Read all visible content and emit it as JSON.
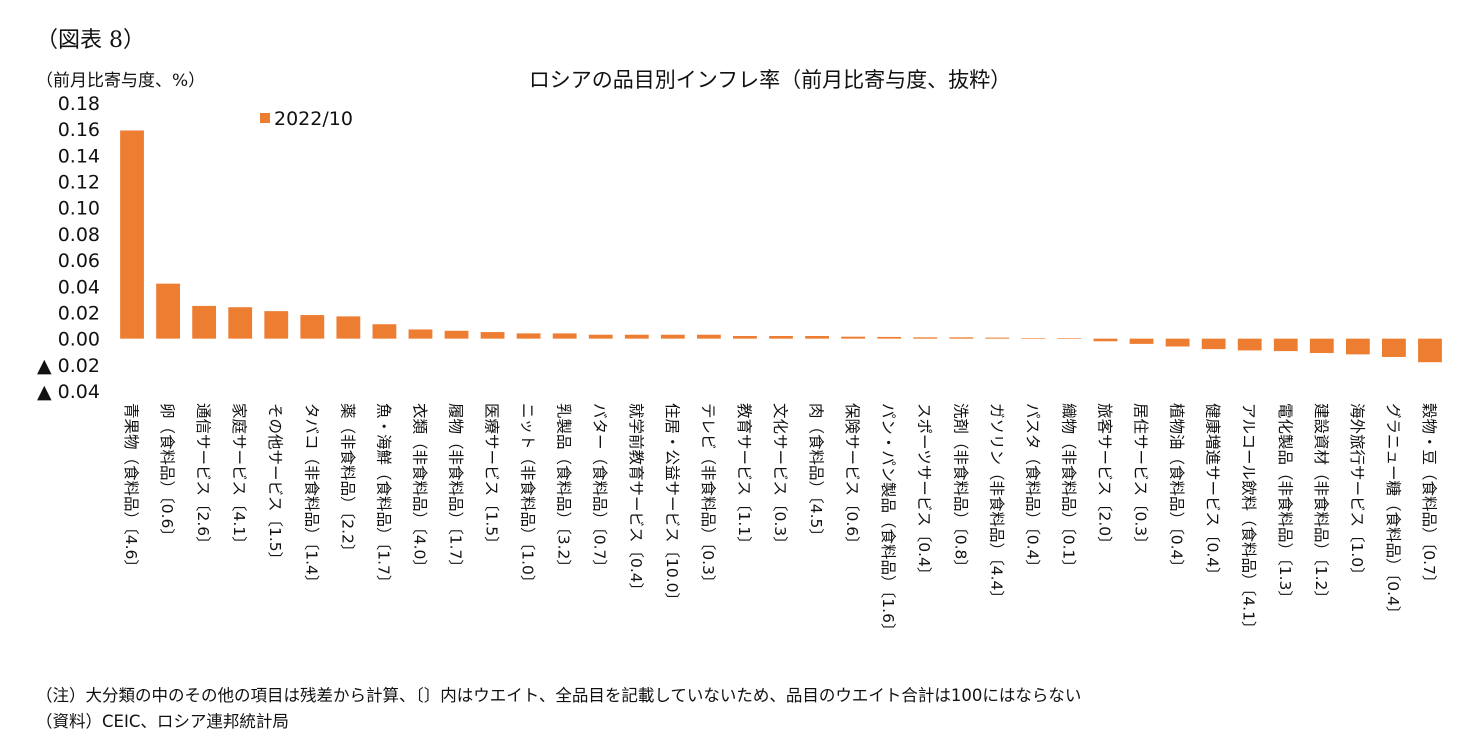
{
  "figure_label": "（図表 8）",
  "notes": {
    "note": "（注）大分類の中のその他の項目は残差から計算、〔〕内はウエイト、全品目を記載していないため、品目のウエイト合計は100にはならない",
    "source": "（資料）CEIC、ロシア連邦統計局"
  },
  "chart_data": {
    "type": "bar",
    "title": "ロシアの品目別インフレ率（前月比寄与度、抜粋）",
    "ylabel": "（前月比寄与度、%）",
    "xlabel": "",
    "ylim": [
      -0.04,
      0.18
    ],
    "yticks": [
      0.18,
      0.16,
      0.14,
      0.12,
      0.1,
      0.08,
      0.06,
      0.04,
      0.02,
      0.0,
      -0.02,
      -0.04
    ],
    "ytick_labels": [
      "0.18",
      "0.16",
      "0.14",
      "0.12",
      "0.10",
      "0.08",
      "0.06",
      "0.04",
      "0.02",
      "0.00",
      "▲ 0.02",
      "▲ 0.04"
    ],
    "grid": false,
    "legend_position": "top-left",
    "bar_color": "#ED7D31",
    "categories": [
      "青果物（食料品）〔4.6〕",
      "卵（食料品）〔0.6〕",
      "通信サービス〔2.6〕",
      "家庭サービス〔4.1〕",
      "その他サービス〔1.5〕",
      "タバコ（非食料品）〔1.4〕",
      "薬（非食料品）〔2.2〕",
      "魚・海鮮（食料品）〔1.7〕",
      "衣類（非食料品）〔4.0〕",
      "履物（非食料品）〔1.7〕",
      "医療サービス〔1.5〕",
      "ニット（非食料品）〔1.0〕",
      "乳製品（食料品）〔3.2〕",
      "バター（食料品）〔0.7〕",
      "就学前教育サービス〔0.4〕",
      "住居・公益サービス〔10.0〕",
      "テレビ（非食料品）〔0.3〕",
      "教育サービス〔1.1〕",
      "文化サービス〔0.3〕",
      "肉（食料品）〔4.5〕",
      "保険サービス〔0.6〕",
      "パン・パン製品（食料品）〔1.6〕",
      "スポーツサービス〔0.4〕",
      "洗剤（非食料品）〔0.8〕",
      "ガソリン（非食料品）〔4.4〕",
      "パスタ（食料品）〔0.4〕",
      "織物（非食料品）〔0.1〕",
      "旅客サービス〔2.0〕",
      "居住サービス〔0.3〕",
      "植物油（食料品）〔0.4〕",
      "健康増進サービス〔0.4〕",
      "アルコール飲料（食料品）〔4.1〕",
      "電化製品（非食料品）〔1.3〕",
      "建設資材（非食料品）〔1.2〕",
      "海外旅行サービス〔1.0〕",
      "グラニュー糖（食料品）〔0.4〕",
      "穀物・豆（食料品）〔0.7〕"
    ],
    "series": [
      {
        "name": "2022/10",
        "values": [
          0.159,
          0.042,
          0.025,
          0.024,
          0.021,
          0.018,
          0.017,
          0.011,
          0.007,
          0.006,
          0.005,
          0.004,
          0.004,
          0.003,
          0.003,
          0.003,
          0.003,
          0.002,
          0.002,
          0.002,
          0.0015,
          0.0013,
          0.001,
          0.001,
          0.0008,
          0.0002,
          0.0001,
          -0.002,
          -0.004,
          -0.006,
          -0.008,
          -0.009,
          -0.0095,
          -0.011,
          -0.012,
          -0.014,
          -0.018
        ]
      }
    ]
  }
}
